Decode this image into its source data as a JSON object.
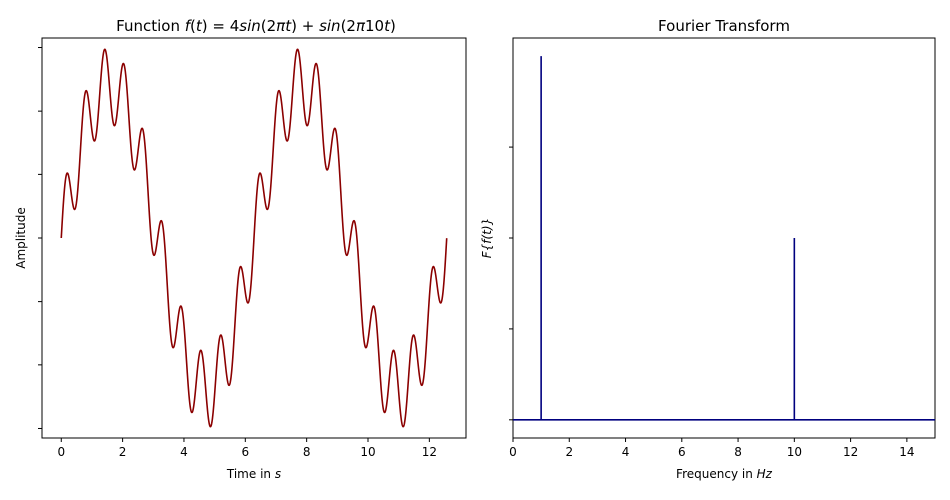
{
  "chart_data": [
    {
      "type": "line",
      "title": {
        "prefix": "Function ",
        "math_parts": [
          {
            "t": "f",
            "i": true
          },
          {
            "t": "(",
            "i": false
          },
          {
            "t": "t",
            "i": true
          },
          {
            "t": ") = 4",
            "i": false
          },
          {
            "t": "sin",
            "i": true
          },
          {
            "t": "(2",
            "i": false
          },
          {
            "t": "πt",
            "i": true
          },
          {
            "t": ") + ",
            "i": false
          },
          {
            "t": "sin",
            "i": true
          },
          {
            "t": "(2",
            "i": false
          },
          {
            "t": "π",
            "i": true
          },
          {
            "t": "10",
            "i": false
          },
          {
            "t": "t",
            "i": true
          },
          {
            "t": ")",
            "i": false
          }
        ]
      },
      "xlabel": {
        "text": "Time in ",
        "unit": "s"
      },
      "ylabel": "Amplitude",
      "xlim": [
        -0.628,
        13.195
      ],
      "ylim": [
        -5.25,
        5.25
      ],
      "xticks": [
        0,
        2,
        4,
        6,
        8,
        10,
        12
      ],
      "yticks": [
        -5,
        -3.33,
        -1.67,
        0,
        1.67,
        3.33,
        5
      ],
      "ytick_labels_shown": false,
      "series": [
        {
          "expression": "4*sin(2*pi*t/(2*pi)*... )",
          "formula_terms": [
            {
              "amplitude": 4,
              "frequency": 1
            },
            {
              "amplitude": 1,
              "frequency": 10
            }
          ],
          "x_range": [
            0,
            12.566
          ],
          "color": "#8b0000"
        }
      ]
    },
    {
      "type": "line",
      "title": "Fourier Transform",
      "xlabel": {
        "text": "Frequency in ",
        "unit": "Hz"
      },
      "ylabel": "F{f(t)}",
      "xlim": [
        0,
        15
      ],
      "ylim": [
        -0.05,
        1.05
      ],
      "xticks": [
        0,
        2,
        4,
        6,
        8,
        10,
        12,
        14
      ],
      "yticks": [
        0,
        0.25,
        0.5,
        0.75
      ],
      "ytick_labels_shown": false,
      "series": [
        {
          "points": [
            [
              1,
              1.0
            ],
            [
              10,
              0.5
            ]
          ],
          "baseline": 0,
          "color": "#00007f"
        }
      ]
    }
  ]
}
